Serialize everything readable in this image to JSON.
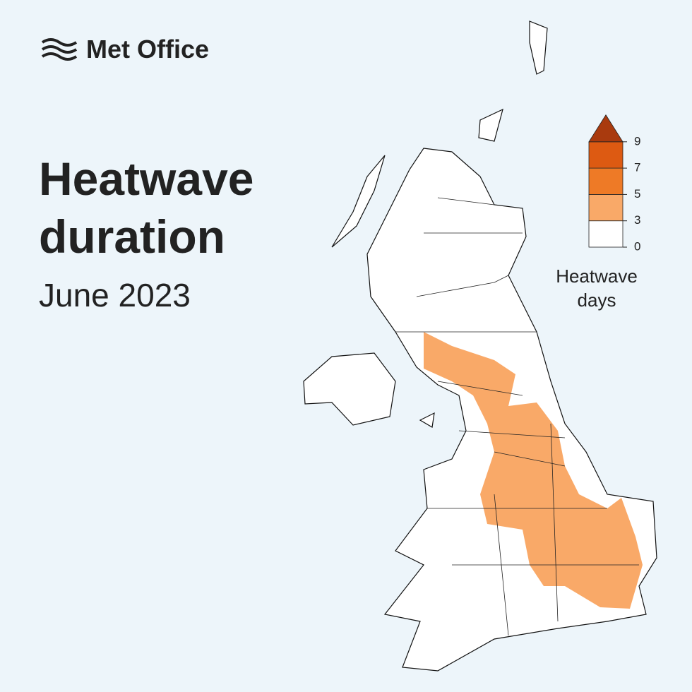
{
  "logo": "Met Office",
  "title": [
    "Heatwave",
    "duration"
  ],
  "subtitle": "June 2023",
  "legend": {
    "title": [
      "Heatwave",
      "days"
    ],
    "ticks": [
      0,
      3,
      5,
      7,
      9
    ],
    "colors": [
      "#ffffff",
      "#f9a968",
      "#ee7a26",
      "#dd5a12",
      "#a93a0e"
    ]
  }
}
